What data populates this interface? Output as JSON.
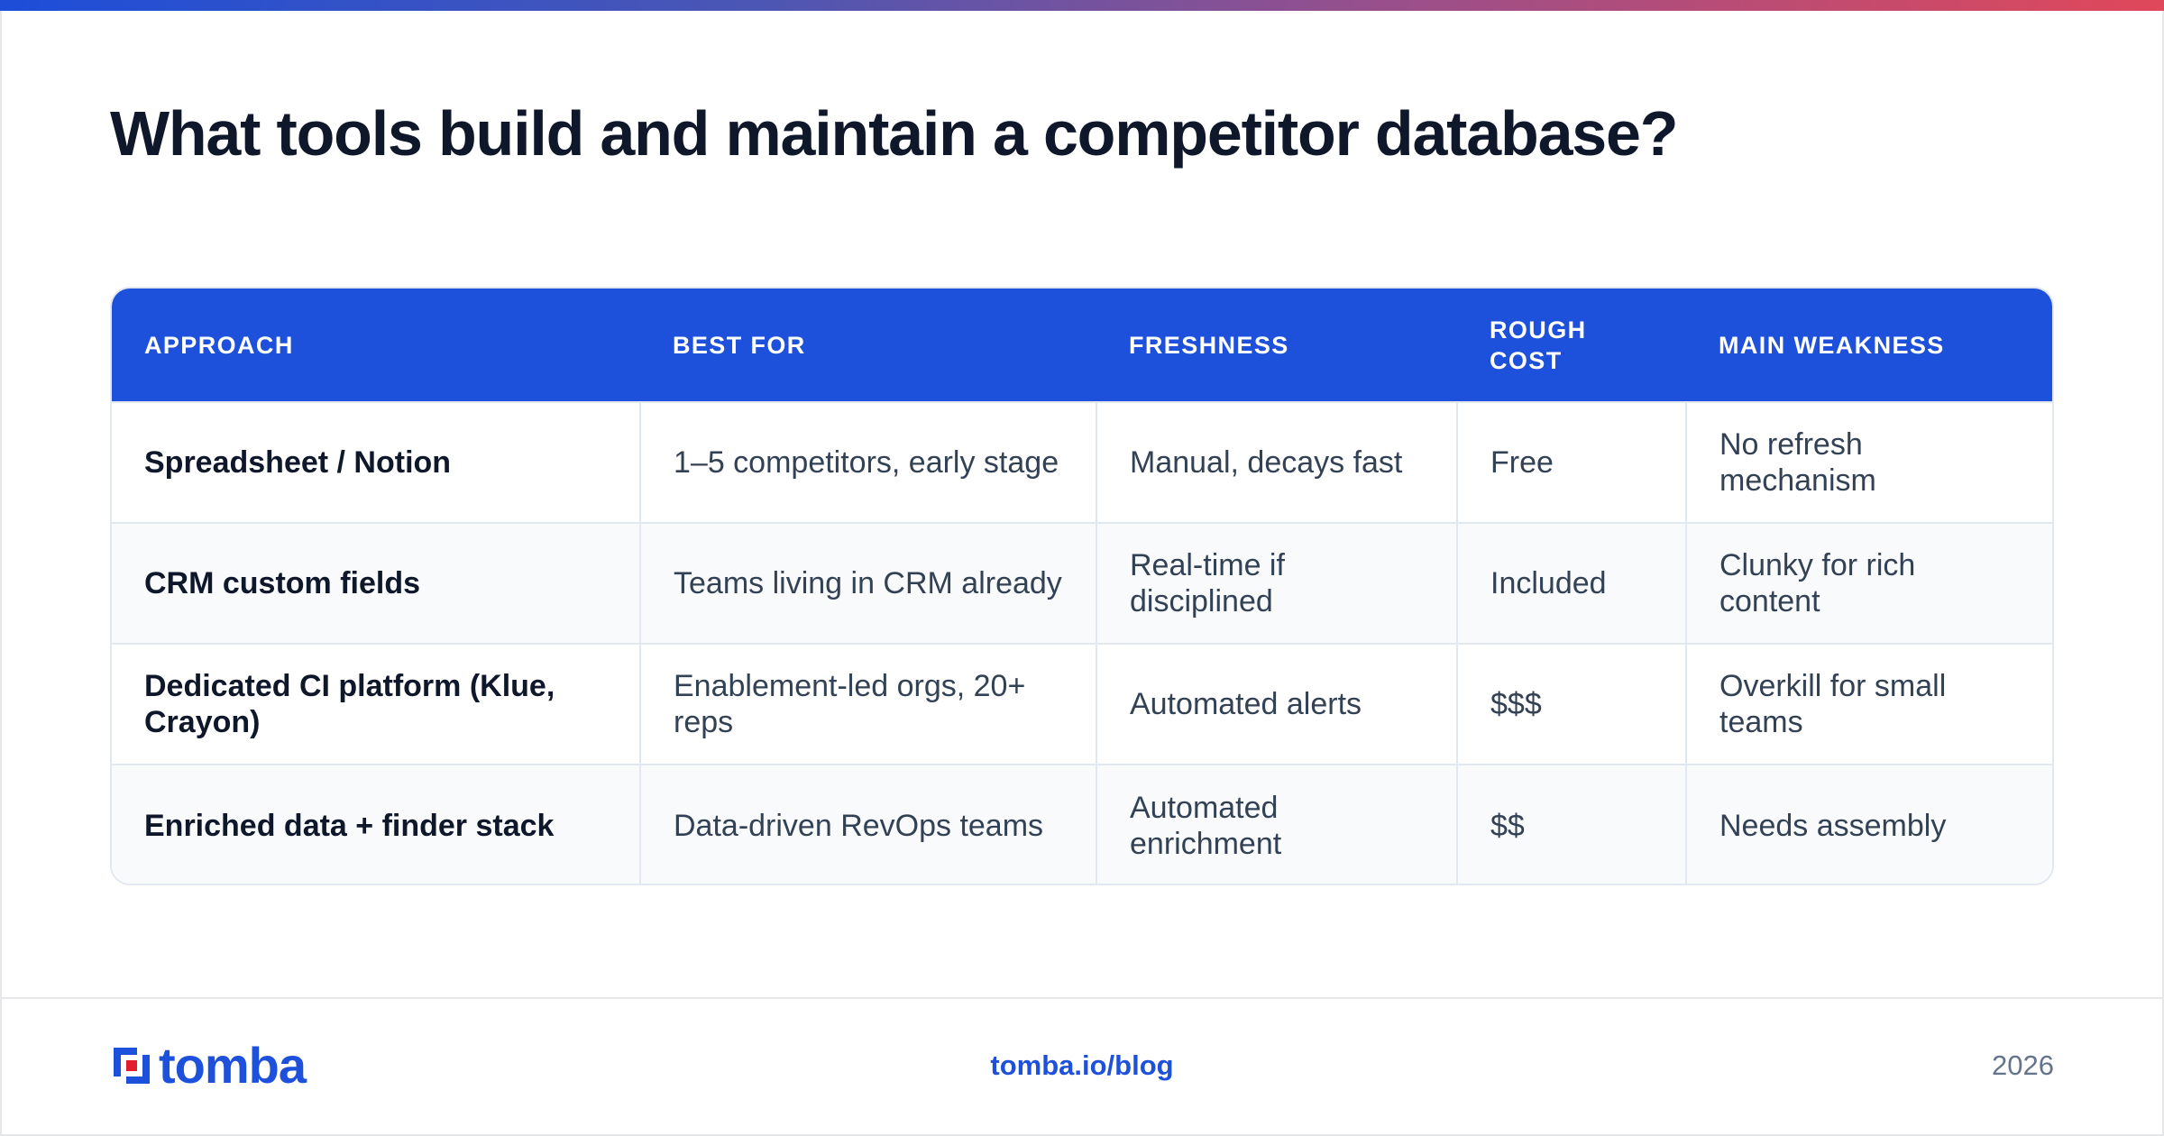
{
  "page": {
    "title": "What tools build and maintain a competitor database?"
  },
  "table": {
    "headers": [
      "APPROACH",
      "BEST FOR",
      "FRESHNESS",
      "ROUGH COST",
      "MAIN WEAKNESS"
    ],
    "rows": [
      [
        "Spreadsheet / Notion",
        "1–5 competitors, early stage",
        "Manual, decays fast",
        "Free",
        "No refresh mechanism"
      ],
      [
        "CRM custom fields",
        "Teams living in CRM already",
        "Real-time if disciplined",
        "Included",
        "Clunky for rich content"
      ],
      [
        "Dedicated CI platform (Klue, Crayon)",
        "Enablement-led orgs, 20+ reps",
        "Automated alerts",
        "$$$",
        "Overkill for small teams"
      ],
      [
        "Enriched data + finder stack",
        "Data-driven RevOps teams",
        "Automated enrichment",
        "$$",
        "Needs assembly"
      ]
    ]
  },
  "footer": {
    "logo_text": "tomba",
    "logo_icon": "tomba-logo-mark-icon",
    "link": "tomba.io/blog",
    "year": "2026"
  },
  "colors": {
    "accent": "#1d50db",
    "heading": "#0f172a",
    "body_text": "#334155",
    "logo_red": "#e11d2e",
    "gradient": [
      "#1d4ed8",
      "#9b4f8a",
      "#e0485a"
    ]
  }
}
